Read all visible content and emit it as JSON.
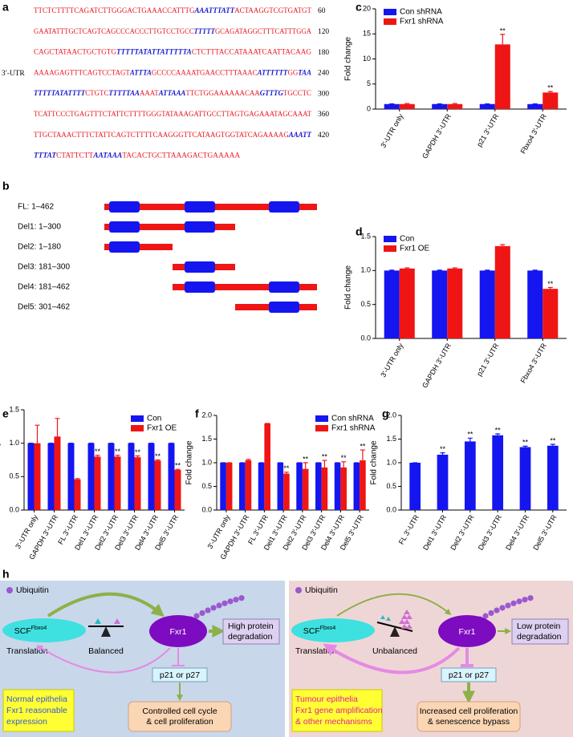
{
  "panel_labels": [
    "a",
    "b",
    "c",
    "d",
    "e",
    "f",
    "g",
    "h"
  ],
  "sequence": {
    "label": "3′-UTR",
    "lines": [
      {
        "segments": [
          {
            "text": "TTCTCTTTTCAGATCTTGGGACTGAAACCATTTG",
            "motif": false
          },
          {
            "text": "AAATTTATT",
            "motif": true
          },
          {
            "text": "ACTAAGGTCGTGATGT",
            "motif": false
          }
        ],
        "position": 60
      },
      {
        "segments": [
          {
            "text": "GAATATTTGCTCAGTCAGCCCACCCTTGTCCTGCC",
            "motif": false
          },
          {
            "text": "TTTTT",
            "motif": true
          },
          {
            "text": "GCAGATAGGCTTTCATTTGGA",
            "motif": false
          }
        ],
        "position": 120
      },
      {
        "segments": [
          {
            "text": "CAGCTATAACTGCTGTG",
            "motif": false
          },
          {
            "text": "TTTTTATATTATTTTTA",
            "motif": true
          },
          {
            "text": "CTCTTTACCATAAATCAATTACAAG",
            "motif": false
          }
        ],
        "position": 180
      },
      {
        "segments": [
          {
            "text": "AAAAGAGTTTCAGTCCTAGT",
            "motif": false
          },
          {
            "text": "ATTTA",
            "motif": true
          },
          {
            "text": "GCCCCAAAATGAACCTTTAAAC",
            "motif": false
          },
          {
            "text": "ATTTTTT",
            "motif": true
          },
          {
            "text": "GG",
            "motif": false
          },
          {
            "text": "TAA",
            "motif": true
          }
        ],
        "position": 240
      },
      {
        "segments": [
          {
            "text": "TTTTTATATTTT",
            "motif": true
          },
          {
            "text": "CTGTC",
            "motif": false
          },
          {
            "text": "TTTTTAA",
            "motif": true
          },
          {
            "text": "AAAT",
            "motif": false
          },
          {
            "text": "ATTAAA",
            "motif": true
          },
          {
            "text": "TTCTGGAAAAAACAA",
            "motif": false
          },
          {
            "text": "GTTTG",
            "motif": true
          },
          {
            "text": "TGCCTC",
            "motif": false
          }
        ],
        "position": 300
      },
      {
        "segments": [
          {
            "text": "TCATTCCCTGAGTTTCTATTCTTTTGGGTATAAAGATTGCCTTAGTGAGAAATAGCAAAT",
            "motif": false
          }
        ],
        "position": 360
      },
      {
        "segments": [
          {
            "text": "TTGCTAAACTTTCTATTCAGTCTTTTCAAGGGTTCATAAGTGGTATCAGAAAAG",
            "motif": false
          },
          {
            "text": "AAATT",
            "motif": true
          }
        ],
        "position": 420
      },
      {
        "segments": [
          {
            "text": "TTTAT",
            "motif": true
          },
          {
            "text": "CTATTCTT",
            "motif": false
          },
          {
            "text": "AATAAA",
            "motif": true
          },
          {
            "text": "TACACTGCTTAAAGACTGAAAAA",
            "motif": false
          }
        ],
        "position": null
      }
    ]
  },
  "constructs": [
    "FL: 1–462",
    "Del1: 1–300",
    "Del2: 1–180",
    "Del3: 181–300",
    "Del4: 181–462",
    "Del5: 301–462"
  ],
  "chart_data": [
    {
      "type": "bar",
      "ylabel": "Fold change",
      "categories": [
        "3′-UTR only",
        "GAPDH 3′-UTR",
        "p21 3′-UTR",
        "Fbxo4 3′-UTR"
      ],
      "series": [
        {
          "name": "Con shRNA",
          "color": "#1515f0",
          "values": [
            1,
            1,
            1,
            1
          ],
          "errors": [
            0.05,
            0.05,
            0.05,
            0.05
          ],
          "significance": [
            null,
            null,
            null,
            null
          ]
        },
        {
          "name": "Fxr1 shRNA",
          "color": "#f01515",
          "values": [
            1,
            1,
            12.9,
            3.3
          ],
          "errors": [
            0.1,
            0.1,
            2,
            0.2
          ],
          "significance": [
            null,
            null,
            "**",
            "**"
          ]
        }
      ],
      "ylim": [
        0,
        20
      ],
      "yticks": [
        0,
        5,
        10,
        15,
        20
      ]
    },
    {
      "type": "bar",
      "ylabel": "Fold change",
      "categories": [
        "3′-UTR only",
        "GAPDH 3′-UTR",
        "p21 3′-UTR",
        "Fbxo4 3′-UTR"
      ],
      "series": [
        {
          "name": "Con",
          "color": "#1515f0",
          "values": [
            1,
            1,
            1,
            1
          ],
          "errors": [
            0.005,
            0.005,
            0.005,
            0.005
          ],
          "significance": [
            null,
            null,
            null,
            null
          ]
        },
        {
          "name": "Fxr1 OE",
          "color": "#f01515",
          "values": [
            1.03,
            1.03,
            1.36,
            0.73
          ],
          "errors": [
            0.01,
            0.01,
            0.02,
            0.02
          ],
          "significance": [
            null,
            null,
            null,
            "**"
          ]
        }
      ],
      "ylim": [
        0,
        1.5
      ],
      "yticks": [
        {
          "value": 0,
          "label": "0.0"
        },
        0.5,
        {
          "value": 1,
          "label": "1.0"
        },
        1.5
      ]
    },
    {
      "type": "bar",
      "ylabel": "Fold change",
      "categories": [
        "3′-UTR only",
        "GAPDH 3′-UTR",
        "FL 3′-UTR",
        "Del1 3′-UTR",
        "Del2 3′-UTR",
        "Del3 3′-UTR",
        "Del4 3′-UTR",
        "Del5 3′-UTR"
      ],
      "series": [
        {
          "name": "Con",
          "color": "#1515f0",
          "values": [
            1,
            1,
            1,
            1,
            1,
            1,
            1,
            1
          ],
          "errors": [
            0,
            0,
            0,
            0,
            0,
            0,
            0,
            0
          ],
          "significance": [
            null,
            null,
            null,
            null,
            null,
            null,
            null,
            null
          ]
        },
        {
          "name": "Fxr1 OE",
          "color": "#f01515",
          "values": [
            1,
            1.1,
            0.46,
            0.8,
            0.8,
            0.79,
            0.74,
            0.6
          ],
          "errors": [
            0.27,
            0.27,
            0.01,
            0.02,
            0.02,
            0.02,
            0.01,
            0.01
          ],
          "significance": [
            null,
            null,
            null,
            "**",
            "**",
            "**",
            "**",
            "**"
          ]
        }
      ],
      "ylim": [
        0,
        1.5
      ],
      "yticks": [
        {
          "value": 0,
          "label": "0.0"
        },
        0.5,
        {
          "value": 1,
          "label": "1.0"
        },
        1.5
      ]
    },
    {
      "type": "bar",
      "ylabel": "Fold change",
      "categories": [
        "3′-UTR only",
        "GAPDH 3′-UTR",
        "FL 3′-UTR",
        "Del1 3′-UTR",
        "Del2 3′-UTR",
        "Del3 3′-UTR",
        "Del4 3′-UTR",
        "Del5 3′-UTR"
      ],
      "series": [
        {
          "name": "Con shRNA",
          "color": "#1515f0",
          "values": [
            1,
            1,
            1,
            1,
            1,
            1,
            1,
            1
          ],
          "errors": [
            0,
            0,
            0,
            0,
            0,
            0,
            0,
            0
          ],
          "significance": [
            null,
            null,
            null,
            null,
            null,
            null,
            null,
            null
          ]
        },
        {
          "name": "Fxr1 shRNA",
          "color": "#f01515",
          "values": [
            1,
            1.05,
            1.83,
            0.77,
            0.87,
            0.9,
            0.9,
            1.05
          ],
          "errors": [
            0,
            0.02,
            0,
            0.03,
            0.13,
            0.15,
            0.12,
            0.22
          ],
          "significance": [
            null,
            null,
            null,
            "**",
            "**",
            "**",
            "**",
            "**"
          ]
        }
      ],
      "ylim": [
        0,
        2
      ],
      "yticks": [
        {
          "value": 0,
          "label": "0.0"
        },
        0.5,
        {
          "value": 1,
          "label": "1.0"
        },
        1.5,
        {
          "value": 2,
          "label": "2.0"
        }
      ]
    },
    {
      "type": "bar",
      "ylabel": "Fold change",
      "categories": [
        "FL 3′-UTR",
        "Del1 3′-UTR",
        "Del2 3′-UTR",
        "Del3 3′-UTR",
        "Del4 3′-UTR",
        "Del5 3′-UTR"
      ],
      "color": "#1515f0",
      "values": [
        1,
        1.17,
        1.45,
        1.58,
        1.33,
        1.36
      ],
      "errors": [
        0,
        0.04,
        0.07,
        0.03,
        0.02,
        0.03
      ],
      "significance": [
        null,
        "**",
        "**",
        "**",
        "**",
        "**"
      ],
      "ylim": [
        0,
        2
      ],
      "yticks": [
        {
          "value": 0,
          "label": "0.0"
        },
        0.5,
        {
          "value": 1,
          "label": "1.0"
        },
        1.5,
        {
          "value": 2,
          "label": "2.0"
        }
      ]
    }
  ],
  "model": [
    {
      "ubiquitin": "Ubiquitin",
      "enzyme": "SCF",
      "enzyme_superscript": "Fbxo4",
      "translation": "Translation",
      "balance": "Balanced",
      "protein": "Fxr1",
      "degradation": [
        "High protein",
        "degradation"
      ],
      "target": "p21 or p27",
      "outcome": [
        "Controlled cell cycle",
        "& cell proliferation"
      ],
      "context": [
        "Normal epithelia",
        "Fxr1 reasonable",
        "expression"
      ]
    },
    {
      "ubiquitin": "Ubiquitin",
      "enzyme": "SCF",
      "enzyme_superscript": "Fbxo4",
      "translation": "Translation",
      "balance": "Unbalanced",
      "protein": "Fxr1",
      "degradation": [
        "Low protein",
        "degradation"
      ],
      "target": "p21 or p27",
      "outcome": [
        "Increased cell proliferation",
        "& senescence bypass"
      ],
      "context": [
        "Tumour epithelia",
        "Fxr1 gene amplification",
        "& other mechanisms"
      ]
    }
  ]
}
